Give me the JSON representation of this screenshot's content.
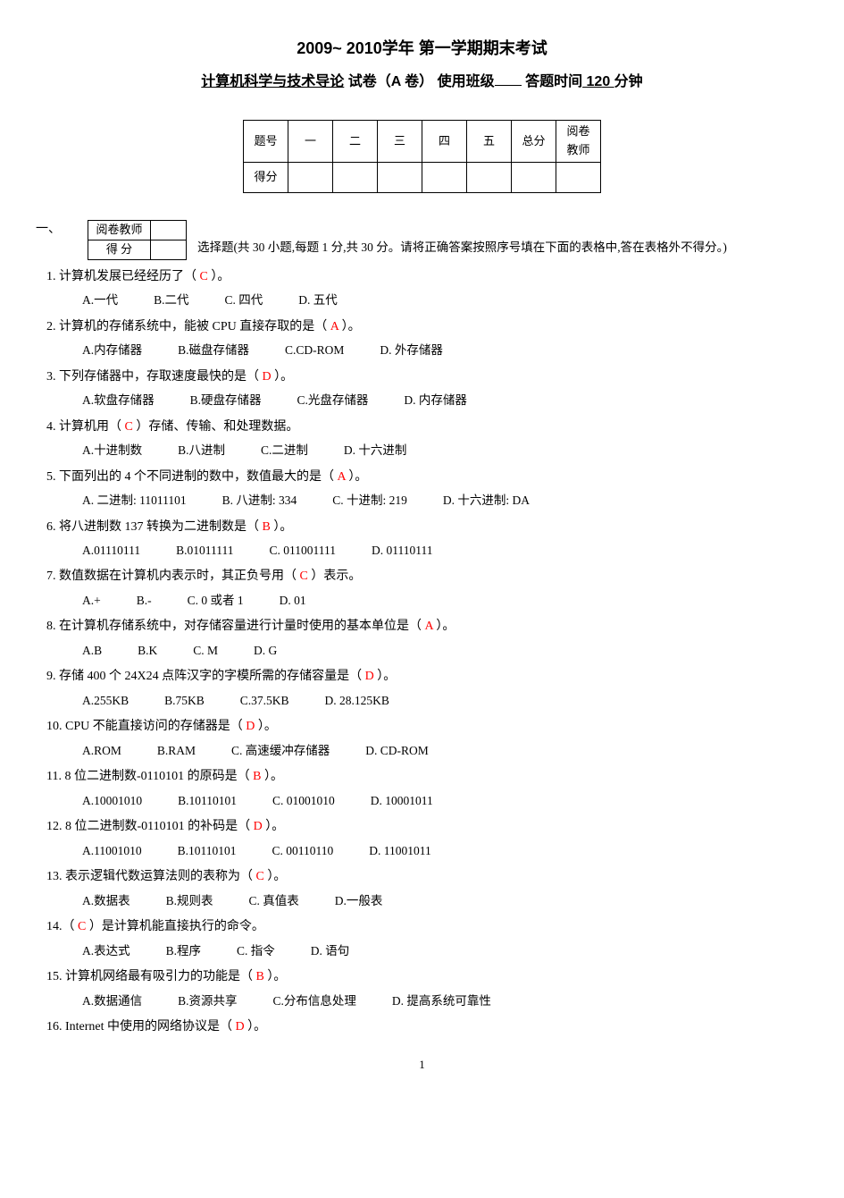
{
  "header": {
    "line1": "2009~  2010学年    第一学期期末考试",
    "course": "计算机科学与技术导论",
    "paper_label": " 试卷（A 卷）  使用班级",
    "time_label": "     答题时间",
    "time_value": " 120 ",
    "time_unit": "分钟"
  },
  "score_table": {
    "row1": [
      "题号",
      "一",
      "二",
      "三",
      "四",
      "五",
      "总分",
      "阅卷\n教师"
    ],
    "row2_label": "得分"
  },
  "section": {
    "num": "一、",
    "mini_labels": [
      "阅卷教师",
      "得    分"
    ],
    "desc": "选择题(共 30 小题,每题 1 分,共 30 分。请将正确答案按照序号填在下面的表格中,答在表格外不得分。)"
  },
  "questions": [
    {
      "n": "1.",
      "t": " 计算机发展已经经历了（",
      "ans": "    C    ",
      "t2": "）。",
      "opts": [
        "A.一代",
        "B.二代",
        "C. 四代",
        "D. 五代"
      ]
    },
    {
      "n": "2.",
      "t": " 计算机的存储系统中，能被 CPU 直接存取的是（",
      "ans": "   A   ",
      "t2": "）。",
      "opts": [
        "A.内存储器",
        "B.磁盘存储器",
        "C.CD-ROM",
        "D. 外存储器"
      ]
    },
    {
      "n": "3.",
      "t": " 下列存储器中，存取速度最快的是（",
      "ans": "   D   ",
      "t2": "）。",
      "opts": [
        "A.软盘存储器",
        "B.硬盘存储器",
        "C.光盘存储器",
        "D. 内存储器"
      ]
    },
    {
      "n": "4.",
      "t": " 计算机用（",
      "ans": "   C   ",
      "t2": "）存储、传输、和处理数据。",
      "opts": [
        "A.十进制数",
        "B.八进制",
        "C.二进制",
        "D. 十六进制"
      ]
    },
    {
      "n": "5.",
      "t": " 下面列出的 4 个不同进制的数中，数值最大的是（",
      "ans": "   A   ",
      "t2": "）。",
      "opts": [
        "A. 二进制: 11011101",
        "B. 八进制: 334",
        "C. 十进制: 219",
        "D. 十六进制: DA"
      ]
    },
    {
      "n": "6.",
      "t": " 将八进制数 137 转换为二进制数是（",
      "ans": "   B   ",
      "t2": "）。",
      "opts": [
        "A.01110111",
        "B.01011111",
        "C. 011001111",
        "D. 01110111"
      ]
    },
    {
      "n": "7.",
      "t": " 数值数据在计算机内表示时，其正负号用（",
      "ans": "    C    ",
      "t2": "）表示。",
      "opts": [
        "A.+",
        "B.-",
        "C. 0 或者 1",
        "D. 01"
      ]
    },
    {
      "n": "8.",
      "t": " 在计算机存储系统中，对存储容量进行计量时使用的基本单位是（",
      "ans": "   A   ",
      "t2": "）。",
      "opts": [
        "A.B",
        "B.K",
        "C. M",
        "D. G"
      ]
    },
    {
      "n": "9.",
      "t": " 存储 400 个 24X24 点阵汉字的字模所需的存储容量是（",
      "ans": "   D   ",
      "t2": "）。",
      "opts": [
        "A.255KB",
        "B.75KB",
        "C.37.5KB",
        "D. 28.125KB"
      ]
    },
    {
      "n": "10.",
      "t": " CPU 不能直接访问的存储器是（",
      "ans": "   D   ",
      "t2": "）。",
      "opts": [
        "A.ROM",
        "B.RAM",
        "C. 高速缓冲存储器",
        "D. CD-ROM"
      ]
    },
    {
      "n": "11.",
      "t": " 8 位二进制数-0110101 的原码是（",
      "ans": "    B    ",
      "t2": "）。",
      "opts": [
        "A.10001010",
        "B.10110101",
        "C. 01001010",
        "D. 10001011"
      ]
    },
    {
      "n": "12.",
      "t": " 8 位二进制数-0110101 的补码是（",
      "ans": "   D   ",
      "t2": "）。",
      "opts": [
        "A.11001010",
        "B.10110101",
        "C. 00110110",
        "D. 11001011"
      ]
    },
    {
      "n": "13.",
      "t": " 表示逻辑代数运算法则的表称为（",
      "ans": "    C    ",
      "t2": "）。",
      "opts": [
        "A.数据表",
        "B.规则表",
        "C. 真值表",
        "D.一般表"
      ]
    },
    {
      "n": "14.",
      "t": "（",
      "ans": "    C    ",
      "t2": "）是计算机能直接执行的命令。",
      "opts": [
        "A.表达式",
        "B.程序",
        "C. 指令",
        "D. 语句"
      ]
    },
    {
      "n": "15.",
      "t": " 计算机网络最有吸引力的功能是（",
      "ans": "    B    ",
      "t2": "）。",
      "opts": [
        "A.数据通信",
        "B.资源共享",
        "C.分布信息处理",
        "D. 提高系统可靠性"
      ]
    },
    {
      "n": "16.",
      "t": " Internet 中使用的网络协议是（",
      "ans": "   D   ",
      "t2": "）。",
      "opts": []
    }
  ],
  "page_number": "1"
}
